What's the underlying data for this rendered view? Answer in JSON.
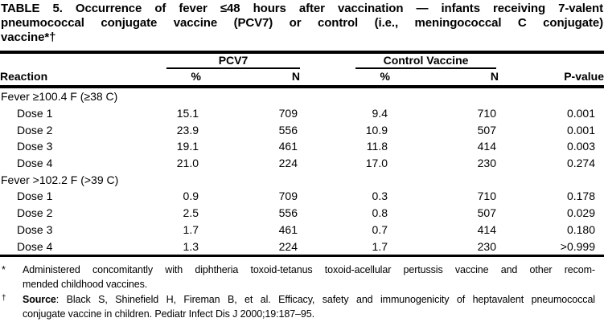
{
  "title": {
    "lines": [
      "TABLE 5. Occurrence of fever ≤48 hours after vaccination — infants receiving 7-valent",
      "pneumococcal conjugate vaccine (PCV7) or control (i.e., meningococcal C conjugate)",
      "vaccine*†"
    ]
  },
  "table": {
    "spanners": {
      "pcv7": "PCV7",
      "control": "Control Vaccine"
    },
    "headers": {
      "reaction": "Reaction",
      "pcv7_pct": "%",
      "pcv7_n": "N",
      "control_pct": "%",
      "control_n": "N",
      "p_value": "P-value"
    },
    "sections": [
      {
        "label": "Fever ≥100.4 F (≥38 C)",
        "rows": [
          {
            "label": "Dose 1",
            "pcv7_pct": "15.1",
            "pcv7_n": "709",
            "control_pct": "9.4",
            "control_n": "710",
            "p_value": "0.001"
          },
          {
            "label": "Dose 2",
            "pcv7_pct": "23.9",
            "pcv7_n": "556",
            "control_pct": "10.9",
            "control_n": "507",
            "p_value": "0.001"
          },
          {
            "label": "Dose 3",
            "pcv7_pct": "19.1",
            "pcv7_n": "461",
            "control_pct": "11.8",
            "control_n": "414",
            "p_value": "0.003"
          },
          {
            "label": "Dose 4",
            "pcv7_pct": "21.0",
            "pcv7_n": "224",
            "control_pct": "17.0",
            "control_n": "230",
            "p_value": "0.274"
          }
        ]
      },
      {
        "label": "Fever >102.2 F (>39 C)",
        "rows": [
          {
            "label": "Dose 1",
            "pcv7_pct": "0.9",
            "pcv7_n": "709",
            "control_pct": "0.3",
            "control_n": "710",
            "p_value": "0.178"
          },
          {
            "label": "Dose 2",
            "pcv7_pct": "2.5",
            "pcv7_n": "556",
            "control_pct": "0.8",
            "control_n": "507",
            "p_value": "0.029"
          },
          {
            "label": "Dose 3",
            "pcv7_pct": "1.7",
            "pcv7_n": "461",
            "control_pct": "0.7",
            "control_n": "414",
            "p_value": "0.180"
          },
          {
            "label": "Dose 4",
            "pcv7_pct": "1.3",
            "pcv7_n": "224",
            "control_pct": "1.7",
            "control_n": "230",
            "p_value": ">0.999"
          }
        ]
      }
    ]
  },
  "footnotes": [
    {
      "marker": "*",
      "line1": "Administered concomitantly with diphtheria toxoid-tetanus toxoid-acellular pertussis vaccine and other recom-",
      "line2": "mended childhood vaccines."
    },
    {
      "marker": "†",
      "label": "Source",
      "line1_rest": ": Black S, Shinefield H, Fireman B, et al. Efficacy, safety and immunogenicity of heptavalent pneumococcal",
      "line2": "conjugate vaccine in children. Pediatr Infect Dis J 2000;19:187–95."
    }
  ],
  "colors": {
    "text": "#000000",
    "background": "#ffffff",
    "rule": "#000000"
  }
}
